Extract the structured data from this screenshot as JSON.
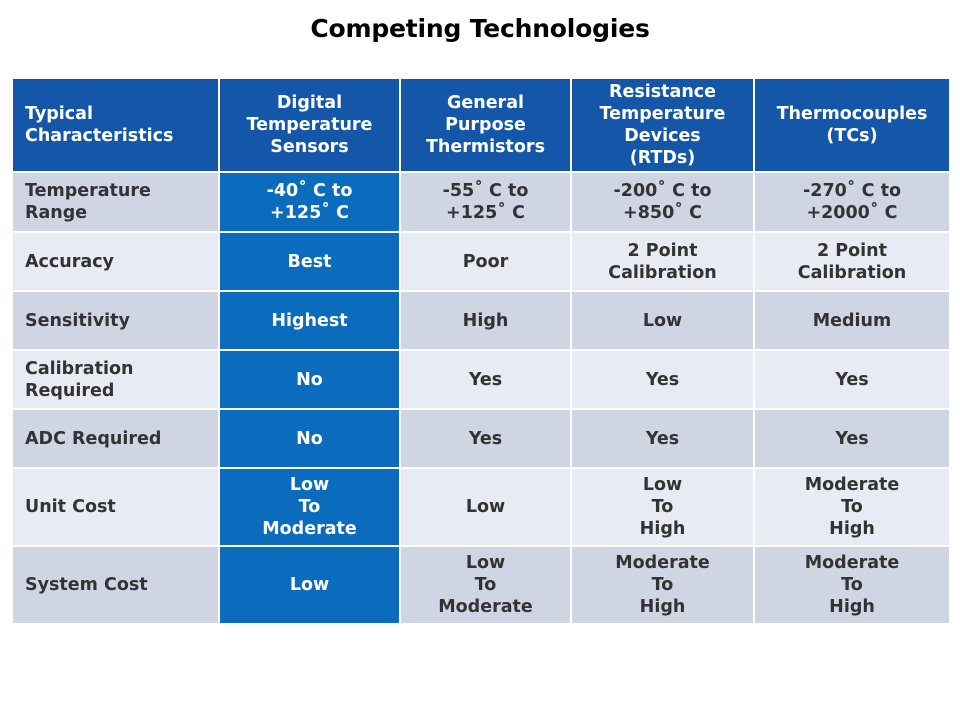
{
  "title": "Competing Technologies",
  "table": {
    "headers": [
      "Typical\nCharacteristics",
      "Digital\nTemperature\nSensors",
      "General\nPurpose\nThermistors",
      "Resistance\nTemperature\nDevices\n(RTDs)",
      "Thermocouples\n(TCs)"
    ],
    "rows": [
      {
        "label": "Temperature\nRange",
        "cells": [
          "-40˚ C to\n+125˚ C",
          "-55˚ C to\n+125˚ C",
          "-200˚ C to\n+850˚ C",
          "-270˚ C to\n+2000˚ C"
        ]
      },
      {
        "label": "Accuracy",
        "cells": [
          "Best",
          "Poor",
          "2 Point\nCalibration",
          "2 Point\nCalibration"
        ]
      },
      {
        "label": "Sensitivity",
        "cells": [
          "Highest",
          "High",
          "Low",
          "Medium"
        ]
      },
      {
        "label": "Calibration\nRequired",
        "cells": [
          "No",
          "Yes",
          "Yes",
          "Yes"
        ]
      },
      {
        "label": "ADC Required",
        "cells": [
          "No",
          "Yes",
          "Yes",
          "Yes"
        ]
      },
      {
        "label": "Unit Cost",
        "cells": [
          "Low\nTo\nModerate",
          "Low",
          "Low\nTo\nHigh",
          "Moderate\nTo\nHigh"
        ]
      },
      {
        "label": "System Cost",
        "cells": [
          "Low",
          "Low\nTo\nModerate",
          "Moderate\nTo\nHigh",
          "Moderate\nTo\nHigh"
        ]
      }
    ]
  },
  "colors": {
    "header_bg": "#1457a8",
    "highlight_col_bg": "#0b6cbd",
    "row_odd_bg": "#d0d5e4",
    "row_even_bg": "#e9ebf4"
  }
}
